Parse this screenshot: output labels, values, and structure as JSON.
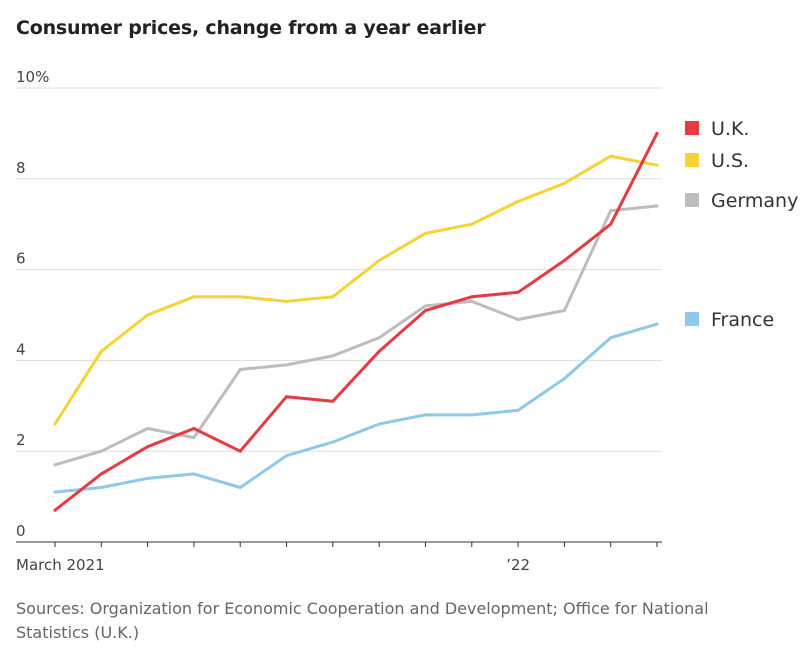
{
  "title": "Consumer prices, change from a year earlier",
  "source": "Sources: Organization for Economic Cooperation and Development; Office for National Statistics (U.K.)",
  "colors": {
    "uk": "#e63b43",
    "us": "#f5d336",
    "germany": "#bdbdbd",
    "france": "#8fc8e8",
    "grid": "#dddddd",
    "axis": "#333333"
  },
  "chart_data": {
    "type": "line",
    "title": "Consumer prices, change from a year earlier",
    "xlabel": "",
    "ylabel": "",
    "x": [
      "Mar 2021",
      "Apr 2021",
      "May 2021",
      "Jun 2021",
      "Jul 2021",
      "Aug 2021",
      "Sep 2021",
      "Oct 2021",
      "Nov 2021",
      "Dec 2021",
      "Jan 2022",
      "Feb 2022",
      "Mar 2022",
      "Apr 2022"
    ],
    "x_tick_labels": [
      {
        "index": 0,
        "label": "March 2021"
      },
      {
        "index": 10,
        "label": "’22"
      }
    ],
    "ylim": [
      0,
      10
    ],
    "y_ticks": [
      {
        "value": 0,
        "label": "0"
      },
      {
        "value": 2,
        "label": "2"
      },
      {
        "value": 4,
        "label": "4"
      },
      {
        "value": 6,
        "label": "6"
      },
      {
        "value": 8,
        "label": "8"
      },
      {
        "value": 10,
        "label": "10%"
      }
    ],
    "grid": true,
    "legend_position": "right",
    "series": [
      {
        "key": "uk",
        "name": "U.K.",
        "color": "#e63b43",
        "values": [
          0.7,
          1.5,
          2.1,
          2.5,
          2.0,
          3.2,
          3.1,
          4.2,
          5.1,
          5.4,
          5.5,
          6.2,
          7.0,
          9.0
        ]
      },
      {
        "key": "us",
        "name": "U.S.",
        "color": "#f5d336",
        "values": [
          2.6,
          4.2,
          5.0,
          5.4,
          5.4,
          5.3,
          5.4,
          6.2,
          6.8,
          7.0,
          7.5,
          7.9,
          8.5,
          8.3
        ]
      },
      {
        "key": "germany",
        "name": "Germany",
        "color": "#bdbdbd",
        "values": [
          1.7,
          2.0,
          2.5,
          2.3,
          3.8,
          3.9,
          4.1,
          4.5,
          5.2,
          5.3,
          4.9,
          5.1,
          7.3,
          7.4
        ]
      },
      {
        "key": "france",
        "name": "France",
        "color": "#8fc8e8",
        "values": [
          1.1,
          1.2,
          1.4,
          1.5,
          1.2,
          1.9,
          2.2,
          2.6,
          2.8,
          2.8,
          2.9,
          3.6,
          4.5,
          4.8
        ]
      }
    ]
  }
}
